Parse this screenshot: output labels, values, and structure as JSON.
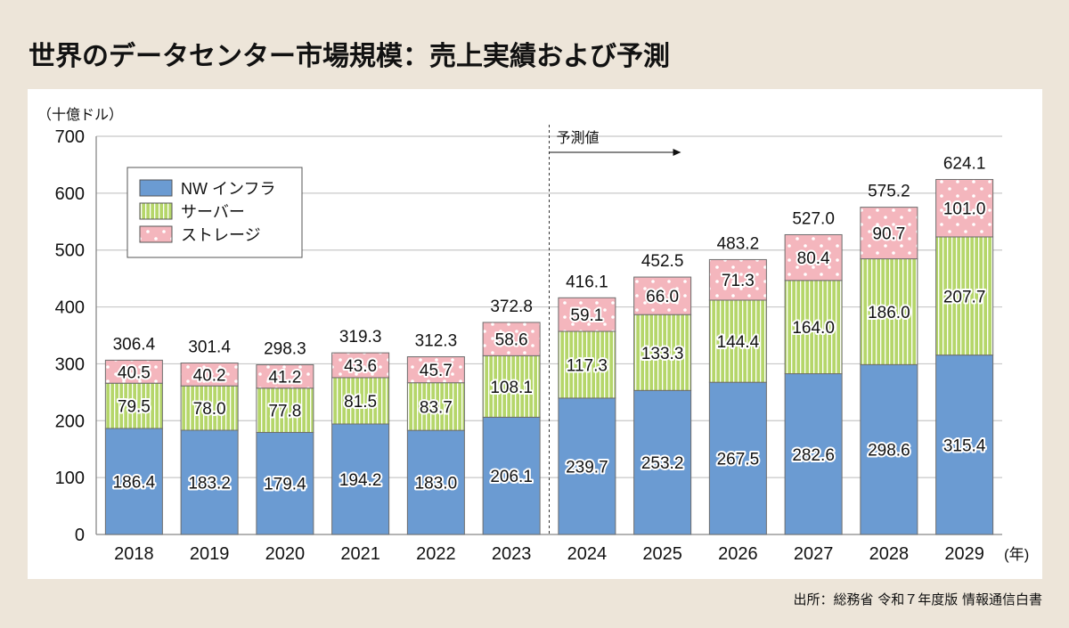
{
  "title": "世界のデータセンター市場規模：売上実績および予測",
  "source": "出所：総務省 令和７年度版 情報通信白書",
  "chart_data": {
    "type": "bar",
    "stacked": true,
    "title": "世界のデータセンター市場規模：売上実績および予測",
    "ylabel": "（十億ドル）",
    "xlabel_suffix": "(年)",
    "ylim": [
      0,
      700
    ],
    "yticks": [
      0,
      100,
      200,
      300,
      400,
      500,
      600,
      700
    ],
    "grid": true,
    "legend_position": "top-left",
    "forecast_label": "予測値",
    "forecast_start": "2024",
    "categories": [
      "2018",
      "2019",
      "2020",
      "2021",
      "2022",
      "2023",
      "2024",
      "2025",
      "2026",
      "2027",
      "2028",
      "2029"
    ],
    "series": [
      {
        "name": "NW インフラ",
        "color": "#6b9bd2",
        "values": [
          186.4,
          183.2,
          179.4,
          194.2,
          183.0,
          206.1,
          239.7,
          253.2,
          267.5,
          282.6,
          298.6,
          315.4
        ]
      },
      {
        "name": "サーバー",
        "color": "#b5d66a",
        "values": [
          79.5,
          78.0,
          77.8,
          81.5,
          83.7,
          108.1,
          117.3,
          133.3,
          144.4,
          164.0,
          186.0,
          207.7
        ]
      },
      {
        "name": "ストレージ",
        "color": "#f4b6bd",
        "values": [
          40.5,
          40.2,
          41.2,
          43.6,
          45.7,
          58.6,
          59.1,
          66.0,
          71.3,
          80.4,
          90.7,
          101.0
        ]
      }
    ],
    "totals": [
      306.4,
      301.4,
      298.3,
      319.3,
      312.3,
      372.8,
      416.1,
      452.5,
      483.2,
      527.0,
      575.2,
      624.1
    ]
  }
}
